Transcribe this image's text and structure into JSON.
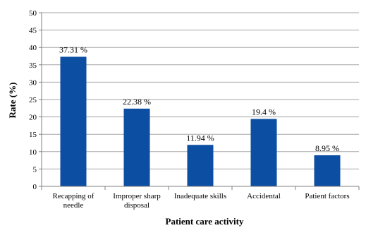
{
  "chart_data": {
    "type": "bar",
    "categories": [
      [
        "Recapping of",
        "needle"
      ],
      [
        "Improper sharp",
        "disposal"
      ],
      [
        "Inadequate skills"
      ],
      [
        "Accidental"
      ],
      [
        "Patient factors"
      ]
    ],
    "values": [
      37.31,
      22.38,
      11.94,
      19.4,
      8.95
    ],
    "data_labels": [
      "37.31 %",
      "22.38 %",
      "11.94 %",
      "19.4 %",
      "8.95 %"
    ],
    "xlabel": "Patient care activity",
    "ylabel": "Rate (%)",
    "ylim": [
      0,
      50
    ],
    "yticks": [
      0,
      5,
      10,
      15,
      20,
      25,
      30,
      35,
      40,
      45,
      50
    ],
    "grid": true,
    "legend": "none",
    "colors": {
      "bar": "#0b4ea2",
      "grid": "#a6a6a6",
      "axis": "#808080"
    }
  }
}
